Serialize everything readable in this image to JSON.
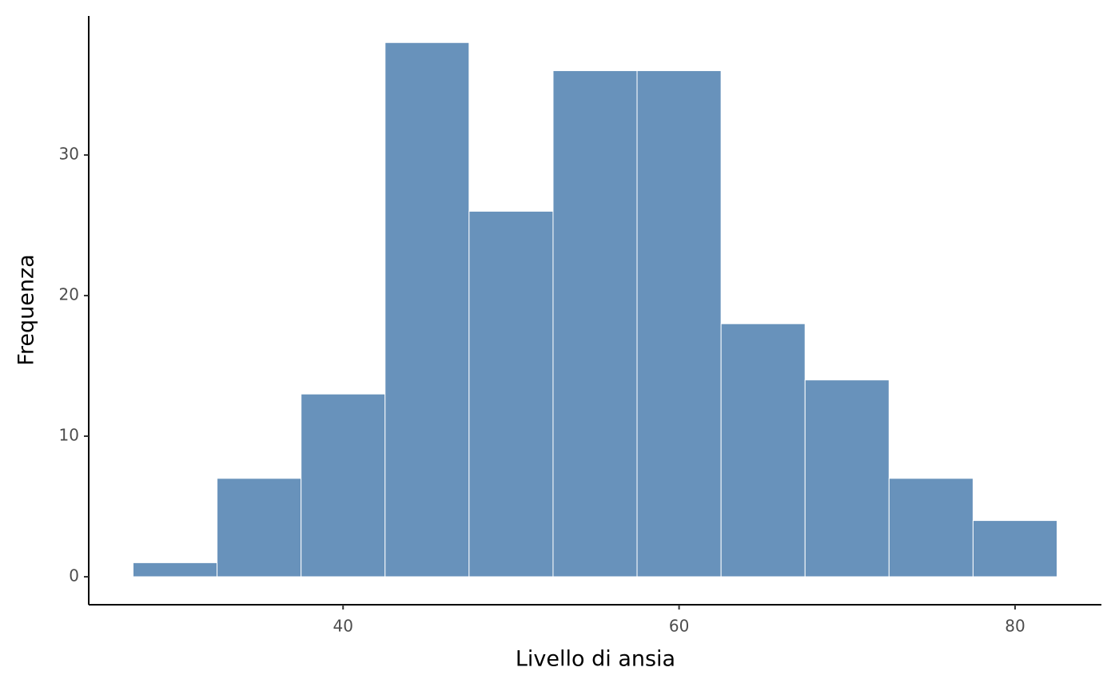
{
  "chart_data": {
    "type": "histogram",
    "x_label": "Livello di ansia",
    "y_label": "Frequenza",
    "bins": [
      27.5,
      32.5,
      37.5,
      42.5,
      47.5,
      52.5,
      57.5,
      62.5,
      67.5,
      72.5,
      77.5,
      82.5
    ],
    "values": [
      1,
      7,
      13,
      38,
      26,
      36,
      36,
      18,
      14,
      7,
      4
    ],
    "color": "#6892bb",
    "edge_color": "#ffffff",
    "xlim": [
      24.86,
      85.14
    ],
    "xticks": [
      40,
      60,
      80
    ],
    "ylim": [
      -1.99,
      39.89
    ],
    "yticks": [
      0,
      10,
      20,
      30
    ],
    "grid": false
  }
}
